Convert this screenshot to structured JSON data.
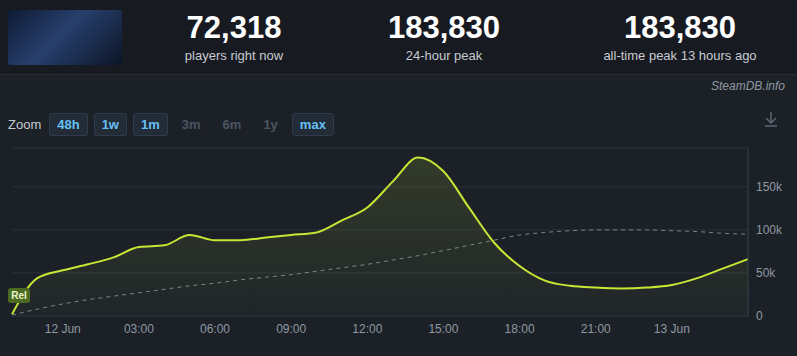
{
  "header": {
    "stats": [
      {
        "value": "72,318",
        "label": "players right now"
      },
      {
        "value": "183,830",
        "label": "24-hour peak"
      },
      {
        "value": "183,830",
        "label": "all-time peak 13 hours ago"
      }
    ],
    "source": "SteamDB.info"
  },
  "zoom": {
    "label": "Zoom",
    "options": [
      {
        "text": "48h",
        "enabled": true
      },
      {
        "text": "1w",
        "enabled": true
      },
      {
        "text": "1m",
        "enabled": true
      },
      {
        "text": "3m",
        "enabled": false
      },
      {
        "text": "6m",
        "enabled": false
      },
      {
        "text": "1y",
        "enabled": false
      },
      {
        "text": "max",
        "enabled": true
      }
    ]
  },
  "chart_data": {
    "type": "line",
    "categories": [
      null,
      null,
      "12 Jun",
      null,
      null,
      "03:00",
      null,
      null,
      "06:00",
      null,
      null,
      "09:00",
      null,
      null,
      "12:00",
      null,
      null,
      "15:00",
      null,
      null,
      "18:00",
      null,
      null,
      "21:00",
      null,
      null,
      "13 Jun",
      null,
      null,
      null
    ],
    "series": [
      {
        "type": "area",
        "color": "#c8e634",
        "line_style": "solid",
        "values": [
          2000,
          44000,
          53000,
          60000,
          68000,
          80000,
          82000,
          94000,
          88000,
          88000,
          91000,
          94000,
          97000,
          111000,
          126000,
          156000,
          183830,
          168000,
          126000,
          85000,
          58000,
          41000,
          35000,
          33000,
          32000,
          33000,
          36000,
          44000,
          55000,
          66000
        ]
      },
      {
        "type": "line",
        "color": "#7d848c",
        "line_style": "dashed",
        "values": [
          1000,
          8000,
          14000,
          19000,
          23000,
          27000,
          31000,
          35000,
          38000,
          42000,
          45000,
          48000,
          52000,
          56000,
          60000,
          65000,
          70000,
          76000,
          82000,
          88000,
          94000,
          97000,
          99000,
          100000,
          100000,
          100000,
          99000,
          98000,
          96000,
          95000
        ]
      }
    ],
    "ylim": [
      0,
      195000
    ],
    "yticks": [
      0,
      {
        "value": 50000,
        "label": "50k"
      },
      {
        "value": 100000,
        "label": "100k"
      },
      {
        "value": 150000,
        "label": "150k"
      }
    ],
    "grid": true,
    "annotations": [
      {
        "at": 0,
        "text": "Rel"
      }
    ]
  }
}
